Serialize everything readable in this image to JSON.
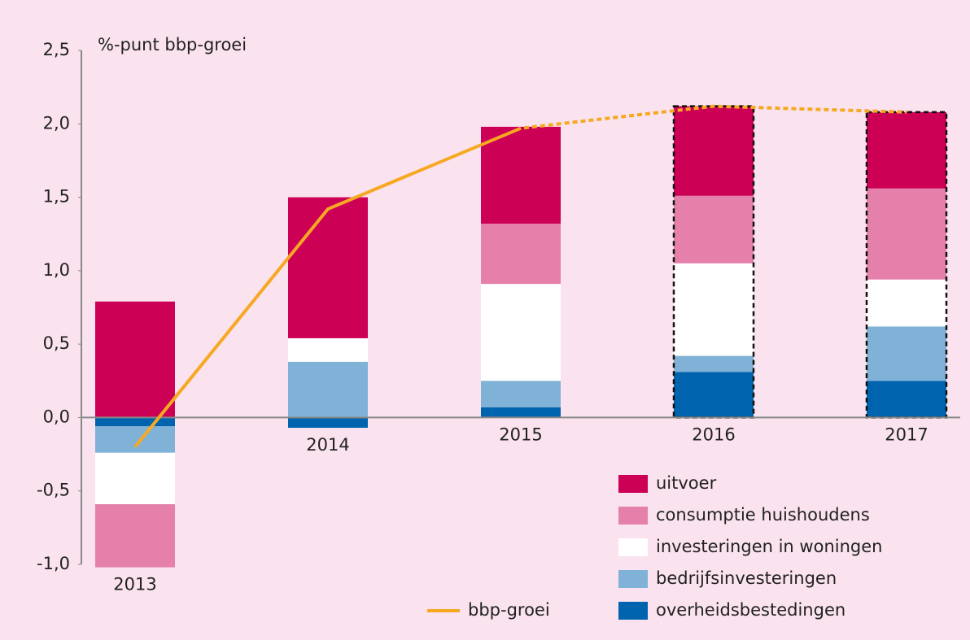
{
  "chart_data": {
    "type": "stacked-bar-line",
    "y_axis_label": "%-punt bbp-groei",
    "categories": [
      "2013",
      "2014",
      "2015",
      "2016",
      "2017"
    ],
    "series": [
      {
        "name": "overheidsbestedingen",
        "color": "#0063ae",
        "values": [
          -0.06,
          -0.07,
          0.07,
          0.31,
          0.25
        ]
      },
      {
        "name": "bedrijfsinvesteringen",
        "color": "#7fb2d6",
        "values": [
          -0.18,
          0.38,
          0.18,
          0.11,
          0.37
        ]
      },
      {
        "name": "investeringen in woningen",
        "color": "#ffffff",
        "values": [
          -0.35,
          0.16,
          0.66,
          0.63,
          0.32
        ]
      },
      {
        "name": "consumptie huishoudens",
        "color": "#e580ab",
        "values": [
          -0.43,
          0,
          0.41,
          0.46,
          0.62
        ]
      },
      {
        "name": "uitvoer",
        "color": "#cc0055",
        "values": [
          0.79,
          0.96,
          0.66,
          0.61,
          0.52
        ]
      }
    ],
    "line": {
      "name": "bbp-groei",
      "color": "#f7a823",
      "values": [
        -0.2,
        1.42,
        1.97,
        2.12,
        2.08
      ]
    },
    "forecast_start_index": 3,
    "ylim": [
      -1.0,
      2.5
    ],
    "yticks": [
      {
        "value": -1.0,
        "label": "-1,0"
      },
      {
        "value": -0.5,
        "label": "-0,5"
      },
      {
        "value": 0.0,
        "label": "0,0"
      },
      {
        "value": 0.5,
        "label": "0,5"
      },
      {
        "value": 1.0,
        "label": "1,0"
      },
      {
        "value": 1.5,
        "label": "1,5"
      },
      {
        "value": 2.0,
        "label": "2,0"
      },
      {
        "value": 2.5,
        "label": "2,5"
      }
    ],
    "legend": "bottom-right"
  }
}
